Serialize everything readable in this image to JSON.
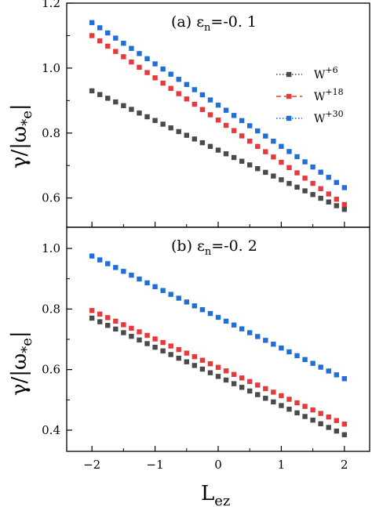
{
  "figure": {
    "xlabel_main": "L",
    "xlabel_sub": "ez",
    "ylabel_main": "γ/|ω",
    "ylabel_sub": "*e",
    "ylabel_end": "|"
  },
  "chart_data": [
    {
      "type": "scatter",
      "panel": "a",
      "title_prefix": "(a) ε",
      "title_sub": "n",
      "title_suffix": "=-0. 1",
      "xlim": [
        -2.4,
        2.4
      ],
      "ylim": [
        0.51,
        1.2
      ],
      "xticks": [
        -2,
        -1,
        0,
        1,
        2
      ],
      "xtick_labels": [
        "−2",
        "−1",
        "0",
        "1",
        "2"
      ],
      "yticks": [
        0.6,
        0.8,
        1.0,
        1.2
      ],
      "ytick_labels": [
        "0.6",
        "0.8",
        "1.0",
        "1.2"
      ],
      "x": {
        "start": -2,
        "end": 2,
        "count": 33
      },
      "legend": {
        "position": "right-upper",
        "visible": true
      },
      "series": [
        {
          "name": "W",
          "sup": "+6",
          "color": "#4a4a4a",
          "dash": "1.5,2.5",
          "start": 0.93,
          "end": 0.565
        },
        {
          "name": "W",
          "sup": "+18",
          "color": "#e8393a",
          "dash": "6,4",
          "start": 1.1,
          "end": 0.58
        },
        {
          "name": "W",
          "sup": "+30",
          "color": "#1f6fd6",
          "dash": "1.5,2.5",
          "start": 1.14,
          "end": 0.632
        }
      ]
    },
    {
      "type": "scatter",
      "panel": "b",
      "title_prefix": "(b) ε",
      "title_sub": "n",
      "title_suffix": "=-0. 2",
      "xlim": [
        -2.4,
        2.4
      ],
      "ylim": [
        0.33,
        1.07
      ],
      "xticks": [
        -2,
        -1,
        0,
        1,
        2
      ],
      "xtick_labels": [
        "−2",
        "−1",
        "0",
        "1",
        "2"
      ],
      "yticks": [
        0.4,
        0.6,
        0.8,
        1.0
      ],
      "ytick_labels": [
        "0.4",
        "0.6",
        "0.8",
        "1.0"
      ],
      "x": {
        "start": -2,
        "end": 2,
        "count": 33
      },
      "legend": {
        "visible": false
      },
      "series": [
        {
          "name": "W",
          "sup": "+6",
          "color": "#4a4a4a",
          "start": 0.77,
          "end": 0.385
        },
        {
          "name": "W",
          "sup": "+18",
          "color": "#e8393a",
          "start": 0.795,
          "end": 0.42
        },
        {
          "name": "W",
          "sup": "+30",
          "color": "#1f6fd6",
          "start": 0.975,
          "end": 0.57
        }
      ]
    }
  ]
}
